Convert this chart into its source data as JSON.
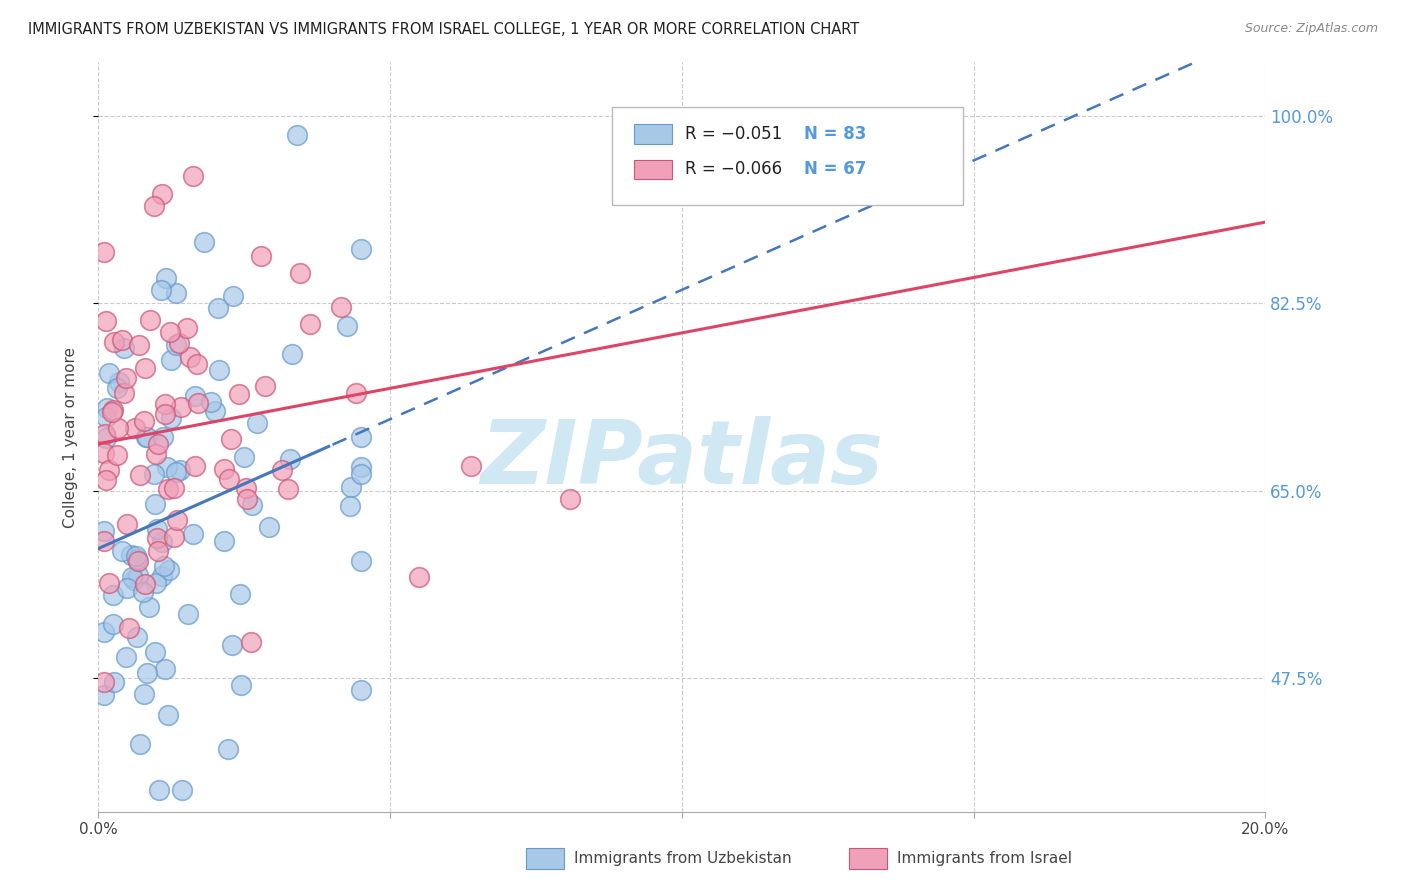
{
  "title": "IMMIGRANTS FROM UZBEKISTAN VS IMMIGRANTS FROM ISRAEL COLLEGE, 1 YEAR OR MORE CORRELATION CHART",
  "source": "Source: ZipAtlas.com",
  "ylabel": "College, 1 year or more",
  "xlim": [
    0.0,
    0.2
  ],
  "ylim": [
    0.35,
    1.05
  ],
  "yticks": [
    0.475,
    0.65,
    0.825,
    1.0
  ],
  "yticklabels": [
    "47.5%",
    "65.0%",
    "82.5%",
    "100.0%"
  ],
  "legend_r1": "R = −0.051",
  "legend_n1": "N = 83",
  "legend_r2": "R = −0.066",
  "legend_n2": "N = 67",
  "color_uzbekistan": "#a8c8e8",
  "color_israel": "#f0a0b8",
  "edge_uzbekistan": "#6699cc",
  "edge_israel": "#cc5577",
  "trend_color_uzbekistan": "#4477bb",
  "trend_color_israel": "#dd4466",
  "watermark_color": "#d0e8f4",
  "grid_color": "#cccccc",
  "right_tick_color": "#5599dd"
}
